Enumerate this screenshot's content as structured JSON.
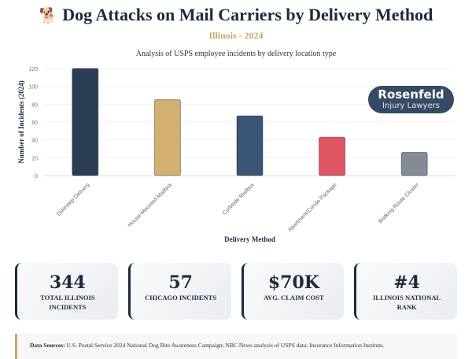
{
  "header": {
    "icon": "dog-icon",
    "icon_glyph": "🐕",
    "title": "Dog Attacks on Mail Carriers by Delivery Method",
    "subtitle": "Illinois - 2024",
    "chart_subtitle": "Analysis of USPS employee incidents by delivery location type"
  },
  "logo": {
    "line1": "Rosenfeld",
    "line2": "Injury Lawyers"
  },
  "chart_data": {
    "type": "bar",
    "categories": [
      "Doorstep Delivery",
      "House-Mounted Mailbox",
      "Curbside Mailbox",
      "Apartment/Condo Package",
      "Walking Route Cluster"
    ],
    "values": [
      120,
      85,
      67,
      43,
      26
    ],
    "colors": [
      "#2c3e56",
      "#d2b072",
      "#3a5575",
      "#e05563",
      "#858b92"
    ],
    "xlabel": "Delivery Method",
    "ylabel": "Number of Incidents (2024)",
    "ylim": [
      0,
      120
    ],
    "yticks": [
      0,
      20,
      40,
      60,
      80,
      100,
      120
    ],
    "grid": true
  },
  "stats": [
    {
      "value": "344",
      "label": "TOTAL ILLINOIS INCIDENTS"
    },
    {
      "value": "57",
      "label": "CHICAGO INCIDENTS"
    },
    {
      "value": "$70K",
      "label": "AVG. CLAIM COST"
    },
    {
      "value": "#4",
      "label": "ILLINOIS NATIONAL RANK"
    }
  ],
  "sources": {
    "label": "Data Sources:",
    "text": " U.S. Postal Service 2024 National Dog Bite Awareness Campaign; NBC News analysis of USPS data; Insurance Information Institute."
  }
}
